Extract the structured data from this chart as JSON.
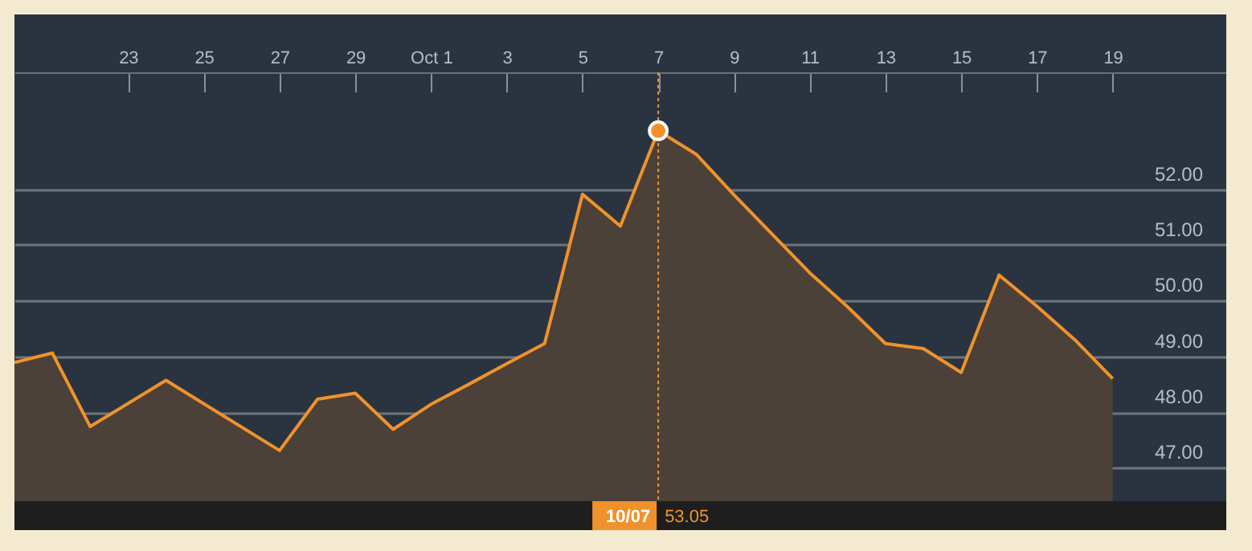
{
  "chart_data": {
    "type": "area",
    "x": [
      "--09-20",
      "--09-21",
      "--09-22",
      "--09-24",
      "--09-27",
      "--09-28",
      "--09-29",
      "--09-30",
      "--10-01",
      "--10-02",
      "--10-03",
      "--10-04",
      "--10-05",
      "--10-06",
      "--10-07",
      "--10-08",
      "--10-09",
      "--10-10",
      "--10-11",
      "--10-12",
      "--10-13",
      "--10-14",
      "--10-15",
      "--10-16",
      "--10-17",
      "--10-18",
      "--10-19"
    ],
    "series": [
      {
        "color": "#f0922b",
        "values": [
          48.89,
          49.06,
          47.74,
          48.57,
          47.31,
          48.23,
          48.34,
          47.69,
          48.14,
          48.5,
          48.87,
          49.23,
          51.91,
          51.34,
          53.05,
          52.63,
          51.9,
          51.2,
          50.5,
          49.89,
          49.23,
          49.14,
          48.71,
          50.46,
          49.9,
          49.3,
          48.6
        ]
      }
    ],
    "xlim": [
      "--09-20",
      "--10-22"
    ],
    "xticks": [
      {
        "value": "--09-23",
        "label": "23"
      },
      {
        "value": "--09-25",
        "label": "25"
      },
      {
        "value": "--09-27",
        "label": "27"
      },
      {
        "value": "--09-29",
        "label": "29"
      },
      {
        "value": "--10-01",
        "label": "Oct 1"
      },
      {
        "value": "--10-03",
        "label": "3"
      },
      {
        "value": "--10-05",
        "label": "5"
      },
      {
        "value": "--10-07",
        "label": "7"
      },
      {
        "value": "--10-09",
        "label": "9"
      },
      {
        "value": "--10-11",
        "label": "11"
      },
      {
        "value": "--10-13",
        "label": "13"
      },
      {
        "value": "--10-15",
        "label": "15"
      },
      {
        "value": "--10-17",
        "label": "17"
      },
      {
        "value": "--10-19",
        "label": "19"
      }
    ],
    "ylim": [
      46.4,
      54.1
    ],
    "yticks": [
      {
        "value": 47,
        "label": "47.00"
      },
      {
        "value": 48,
        "label": "48.00"
      },
      {
        "value": 49,
        "label": "49.00"
      },
      {
        "value": 50,
        "label": "50.00"
      },
      {
        "value": 51,
        "label": "51.00"
      },
      {
        "value": 52,
        "label": "52.00"
      }
    ],
    "grid": "y",
    "ref_lines": [
      {
        "axis": "x",
        "value": "--10-07",
        "label": "10/07",
        "color": "#f0922b",
        "line_style": "dotted"
      }
    ],
    "annotations": [
      "53.05"
    ]
  }
}
